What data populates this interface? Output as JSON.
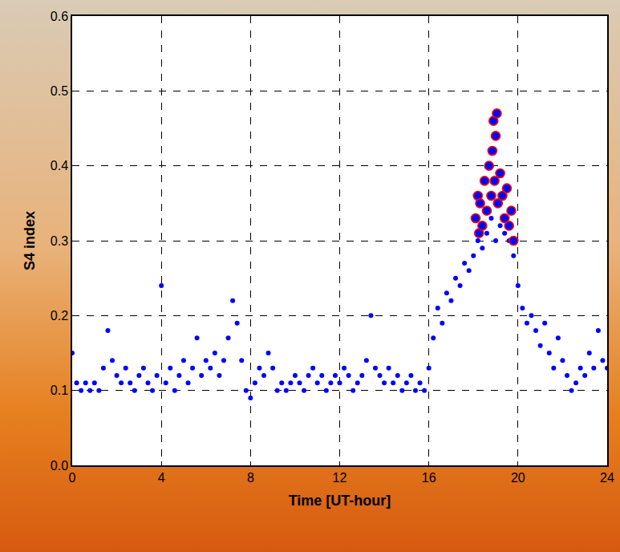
{
  "chart_data": {
    "type": "scatter",
    "x_label": "Time [UT-hour]",
    "y_label": "S4 index",
    "xlim": [
      0,
      24
    ],
    "xticks": [
      0,
      4,
      8,
      12,
      16,
      20,
      24
    ],
    "ylim": [
      0,
      0.6
    ],
    "yticks": [
      {
        "value": 0,
        "label": "0.0"
      },
      0.1,
      0.2,
      0.3,
      0.4,
      0.5,
      0.6
    ],
    "grid": true,
    "series": [
      {
        "color": "#0000ff",
        "marker": "circle",
        "x": [
          0,
          0.2,
          0.4,
          0.6,
          0.8,
          1.0,
          1.2,
          1.4,
          1.6,
          1.8,
          2.0,
          2.2,
          2.4,
          2.6,
          2.8,
          3.0,
          3.2,
          3.4,
          3.6,
          3.8,
          4.0,
          4.2,
          4.4,
          4.6,
          4.8,
          5.0,
          5.2,
          5.4,
          5.6,
          5.8,
          6.0,
          6.2,
          6.4,
          6.6,
          6.8,
          7.0,
          7.2,
          7.4,
          7.6,
          7.8,
          8.0,
          8.2,
          8.4,
          8.6,
          8.8,
          9.0,
          9.2,
          9.4,
          9.6,
          9.8,
          10.0,
          10.2,
          10.4,
          10.6,
          10.8,
          11.0,
          11.2,
          11.4,
          11.6,
          11.8,
          12.0,
          12.2,
          12.4,
          12.6,
          12.8,
          13.0,
          13.2,
          13.4,
          13.6,
          13.8,
          14.0,
          14.2,
          14.4,
          14.6,
          14.8,
          15.0,
          15.2,
          15.4,
          15.6,
          15.8,
          16.0,
          16.2,
          16.4,
          16.6,
          16.8,
          17.0,
          17.2,
          17.4,
          17.6,
          17.8,
          18.0,
          18.2,
          18.4,
          18.6,
          18.8,
          19.0,
          19.2,
          19.4,
          19.6,
          19.8,
          20.0,
          20.2,
          20.4,
          20.6,
          20.8,
          21.0,
          21.2,
          21.4,
          21.6,
          21.8,
          22.0,
          22.2,
          22.4,
          22.6,
          22.8,
          23.0,
          23.2,
          23.4,
          23.6,
          23.8,
          24.0
        ],
        "values": [
          0.15,
          0.11,
          0.1,
          0.11,
          0.1,
          0.11,
          0.1,
          0.13,
          0.18,
          0.14,
          0.12,
          0.11,
          0.13,
          0.11,
          0.1,
          0.12,
          0.13,
          0.11,
          0.1,
          0.12,
          0.24,
          0.11,
          0.13,
          0.1,
          0.12,
          0.14,
          0.11,
          0.13,
          0.17,
          0.12,
          0.14,
          0.13,
          0.15,
          0.12,
          0.14,
          0.17,
          0.22,
          0.19,
          0.14,
          0.1,
          0.09,
          0.11,
          0.13,
          0.12,
          0.15,
          0.13,
          0.1,
          0.11,
          0.1,
          0.11,
          0.12,
          0.11,
          0.1,
          0.12,
          0.13,
          0.11,
          0.12,
          0.1,
          0.11,
          0.12,
          0.11,
          0.13,
          0.12,
          0.1,
          0.11,
          0.12,
          0.14,
          0.2,
          0.13,
          0.12,
          0.11,
          0.13,
          0.11,
          0.12,
          0.1,
          0.11,
          0.12,
          0.1,
          0.11,
          0.1,
          0.13,
          0.17,
          0.21,
          0.19,
          0.23,
          0.22,
          0.25,
          0.24,
          0.27,
          0.26,
          0.28,
          0.3,
          0.29,
          0.31,
          0.33,
          0.3,
          0.32,
          0.31,
          0.3,
          0.28,
          0.24,
          0.21,
          0.19,
          0.2,
          0.18,
          0.16,
          0.19,
          0.15,
          0.13,
          0.17,
          0.14,
          0.12,
          0.1,
          0.11,
          0.13,
          0.12,
          0.15,
          0.13,
          0.18,
          0.14,
          0.13
        ]
      },
      {
        "color": "#ff0000",
        "marker": "circle-open",
        "x": [
          18.1,
          18.2,
          18.25,
          18.3,
          18.4,
          18.5,
          18.6,
          18.7,
          18.8,
          18.85,
          18.9,
          18.95,
          19.0,
          19.05,
          19.1,
          19.2,
          19.3,
          19.4,
          19.5,
          19.6,
          19.7,
          19.8
        ],
        "values": [
          0.33,
          0.36,
          0.31,
          0.35,
          0.32,
          0.38,
          0.34,
          0.4,
          0.36,
          0.42,
          0.46,
          0.38,
          0.44,
          0.47,
          0.35,
          0.39,
          0.36,
          0.33,
          0.37,
          0.32,
          0.34,
          0.3
        ]
      }
    ]
  }
}
